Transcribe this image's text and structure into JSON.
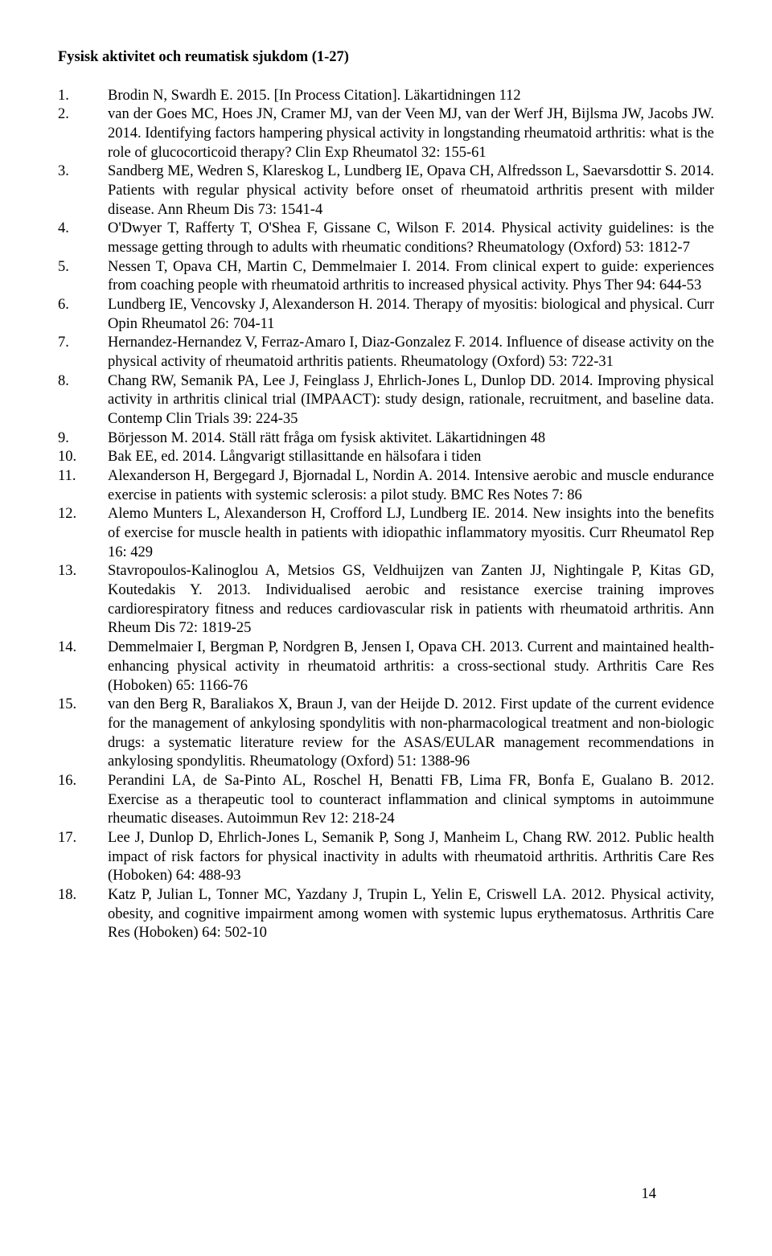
{
  "title": "Fysisk aktivitet och reumatisk sjukdom (1-27)",
  "pageNumber": "14",
  "references": [
    {
      "n": "1.",
      "t": "Brodin N, Swardh E. 2015. [In Process Citation]. Läkartidningen 112"
    },
    {
      "n": "2.",
      "t": "van der Goes MC, Hoes JN, Cramer MJ, van der Veen MJ, van der Werf JH, Bijlsma JW, Jacobs JW. 2014. Identifying factors hampering physical activity in longstanding rheumatoid arthritis: what is the role of glucocorticoid therapy? Clin Exp Rheumatol 32: 155-61"
    },
    {
      "n": "3.",
      "t": "Sandberg ME, Wedren S, Klareskog L, Lundberg IE, Opava CH, Alfredsson L, Saevarsdottir S. 2014. Patients with regular physical activity before onset of rheumatoid arthritis present with milder disease. Ann Rheum Dis 73: 1541-4"
    },
    {
      "n": "4.",
      "t": "O'Dwyer T, Rafferty T, O'Shea F, Gissane C, Wilson F. 2014. Physical activity guidelines: is the message getting through to adults with rheumatic conditions? Rheumatology (Oxford) 53: 1812-7"
    },
    {
      "n": "5.",
      "t": "Nessen T, Opava CH, Martin C, Demmelmaier I. 2014. From clinical expert to guide: experiences from coaching people with rheumatoid arthritis to increased physical activity. Phys Ther 94: 644-53"
    },
    {
      "n": "6.",
      "t": "Lundberg IE, Vencovsky J, Alexanderson H. 2014. Therapy of myositis: biological and physical. Curr Opin Rheumatol 26: 704-11"
    },
    {
      "n": "7.",
      "t": "Hernandez-Hernandez V, Ferraz-Amaro I, Diaz-Gonzalez F. 2014. Influence of disease activity on the physical activity of rheumatoid arthritis patients. Rheumatology (Oxford) 53: 722-31"
    },
    {
      "n": "8.",
      "t": "Chang RW, Semanik PA, Lee J, Feinglass J, Ehrlich-Jones L, Dunlop DD. 2014. Improving physical activity in arthritis clinical trial (IMPAACT): study design, rationale, recruitment, and baseline data. Contemp Clin Trials 39: 224-35"
    },
    {
      "n": "9.",
      "t": "Börjesson M. 2014. Ställ rätt fråga om fysisk aktivitet. Läkartidningen 48"
    },
    {
      "n": "10.",
      "t": "Bak EE, ed. 2014. Långvarigt stillasittande en hälsofara i tiden"
    },
    {
      "n": "11.",
      "t": "Alexanderson H, Bergegard J, Bjornadal L, Nordin A. 2014. Intensive aerobic and muscle endurance exercise in patients with systemic sclerosis: a pilot study. BMC Res Notes 7: 86"
    },
    {
      "n": "12.",
      "t": "Alemo Munters L, Alexanderson H, Crofford LJ, Lundberg IE. 2014. New insights into the benefits of exercise for muscle health in patients with idiopathic inflammatory myositis. Curr Rheumatol Rep 16: 429"
    },
    {
      "n": "13.",
      "t": "Stavropoulos-Kalinoglou A, Metsios GS, Veldhuijzen van Zanten JJ, Nightingale P, Kitas GD, Koutedakis Y. 2013. Individualised aerobic and resistance exercise training improves cardiorespiratory fitness and reduces cardiovascular risk in patients with rheumatoid arthritis. Ann Rheum Dis 72: 1819-25"
    },
    {
      "n": "14.",
      "t": "Demmelmaier I, Bergman P, Nordgren B, Jensen I, Opava CH. 2013. Current and maintained health-enhancing physical activity in rheumatoid arthritis: a cross-sectional study. Arthritis Care Res (Hoboken) 65: 1166-76"
    },
    {
      "n": "15.",
      "t": "van den Berg R, Baraliakos X, Braun J, van der Heijde D. 2012. First update of the current evidence for the management of ankylosing spondylitis with non-pharmacological treatment and non-biologic drugs: a systematic literature review for the ASAS/EULAR management recommendations in ankylosing spondylitis. Rheumatology (Oxford) 51: 1388-96"
    },
    {
      "n": "16.",
      "t": "Perandini LA, de Sa-Pinto AL, Roschel H, Benatti FB, Lima FR, Bonfa E, Gualano B. 2012. Exercise as a therapeutic tool to counteract inflammation and clinical symptoms in autoimmune rheumatic diseases. Autoimmun Rev 12: 218-24"
    },
    {
      "n": "17.",
      "t": "Lee J, Dunlop D, Ehrlich-Jones L, Semanik P, Song J, Manheim L, Chang RW. 2012. Public health impact of risk factors for physical inactivity in adults with rheumatoid arthritis. Arthritis Care Res (Hoboken) 64: 488-93"
    },
    {
      "n": "18.",
      "t": "Katz P, Julian L, Tonner MC, Yazdany J, Trupin L, Yelin E, Criswell LA. 2012. Physical activity, obesity, and cognitive impairment among women with systemic lupus erythematosus. Arthritis Care Res (Hoboken) 64: 502-10"
    }
  ]
}
